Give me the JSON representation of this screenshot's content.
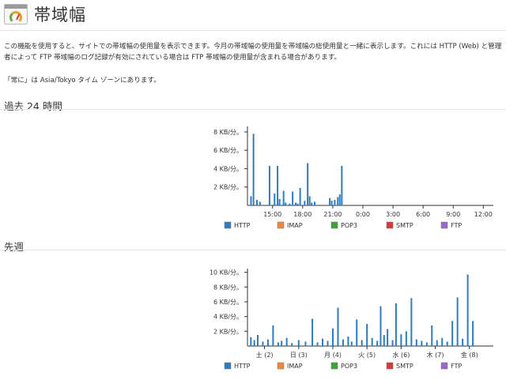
{
  "header": {
    "title": "帯域幅",
    "icon": "bandwidth-gauge-icon"
  },
  "description": "この機能を使用すると、サイトでの帯域幅の使用量を表示できます。今月の帯域幅の使用量を帯域幅の総使用量と一緒に表示します。これには HTTP (Web) と管理者によって FTP 帯域幅のログ記録が有効にされている場合は FTP 帯域幅の使用量が含まれる場合があります。",
  "timezone_note": "「常に」は Asia/Tokyo タイム ゾーンにあります。",
  "sections": [
    {
      "title": "過去 24 時間"
    },
    {
      "title": "先週"
    }
  ],
  "legend": [
    {
      "name": "HTTP",
      "color": "#2f7bbf"
    },
    {
      "name": "IMAP",
      "color": "#f0883a"
    },
    {
      "name": "POP3",
      "color": "#3aa33a"
    },
    {
      "name": "SMTP",
      "color": "#d83a3a"
    },
    {
      "name": "FTP",
      "color": "#9a6ac8"
    }
  ],
  "chart_data": [
    {
      "type": "bar",
      "series_name": "HTTP",
      "y_unit": "KB/分。",
      "yticks": [
        2,
        4,
        6,
        8
      ],
      "ytick_labels": [
        "2 KB/分。",
        "4 KB/分。",
        "6 KB/分。",
        "8 KB/分。"
      ],
      "ylim": [
        0,
        8.6
      ],
      "xlim": [
        12.5,
        37
      ],
      "xticks": [
        15,
        18,
        21,
        24,
        27,
        30,
        33,
        36
      ],
      "xtick_labels": [
        "15:00",
        "18:00",
        "21:00",
        "0:00",
        "3:00",
        "6:00",
        "9:00",
        "12:00"
      ],
      "x": [
        12.85,
        13.1,
        13.45,
        13.75,
        14.7,
        15.2,
        15.5,
        15.7,
        16.1,
        16.3,
        16.7,
        17.0,
        17.3,
        17.5,
        17.75,
        18.2,
        18.5,
        18.7,
        18.9,
        19.2,
        20.7,
        20.9,
        21.2,
        21.5,
        21.7,
        21.9
      ],
      "values": [
        1.0,
        7.8,
        0.6,
        0.4,
        4.3,
        1.3,
        4.3,
        0.7,
        1.6,
        0.3,
        0.2,
        1.5,
        0.3,
        0.2,
        1.9,
        0.5,
        4.6,
        1.0,
        0.3,
        0.4,
        0.8,
        0.5,
        0.6,
        0.9,
        1.2,
        4.3
      ]
    },
    {
      "type": "bar",
      "series_name": "HTTP",
      "y_unit": "KB/分。",
      "yticks": [
        2,
        4,
        6,
        8,
        10
      ],
      "ytick_labels": [
        "2 KB/分。",
        "4 KB/分。",
        "6 KB/分。",
        "8 KB/分。",
        "10 KB/分。"
      ],
      "ylim": [
        0,
        10.5
      ],
      "xlim": [
        0,
        7.2
      ],
      "xticks": [
        0.5,
        1.5,
        2.5,
        3.5,
        4.5,
        5.5,
        6.5
      ],
      "xtick_labels": [
        "土 (2)",
        "日 (3)",
        "月 (4)",
        "火 (5)",
        "水 (6)",
        "木 (7)",
        "金 (8)"
      ],
      "x": [
        0.1,
        0.2,
        0.3,
        0.45,
        0.6,
        0.75,
        0.9,
        1.0,
        1.15,
        1.3,
        1.5,
        1.7,
        1.9,
        2.05,
        2.2,
        2.35,
        2.5,
        2.65,
        2.8,
        2.95,
        3.05,
        3.2,
        3.35,
        3.5,
        3.65,
        3.8,
        3.9,
        4.0,
        4.1,
        4.25,
        4.35,
        4.5,
        4.65,
        4.8,
        4.95,
        5.1,
        5.25,
        5.4,
        5.55,
        5.7,
        5.85,
        6.0,
        6.15,
        6.3,
        6.45,
        6.6
      ],
      "values": [
        1.2,
        0.8,
        1.5,
        0.6,
        0.9,
        2.8,
        0.5,
        0.7,
        1.1,
        0.4,
        0.8,
        0.6,
        3.7,
        0.5,
        1.0,
        0.7,
        2.4,
        5.2,
        0.9,
        1.3,
        0.6,
        3.6,
        0.8,
        3.0,
        1.1,
        0.7,
        5.4,
        1.5,
        2.3,
        0.8,
        5.8,
        1.6,
        2.0,
        6.5,
        0.9,
        0.7,
        0.5,
        2.8,
        0.8,
        1.1,
        0.6,
        3.4,
        6.6,
        1.0,
        9.7,
        3.4
      ]
    }
  ]
}
